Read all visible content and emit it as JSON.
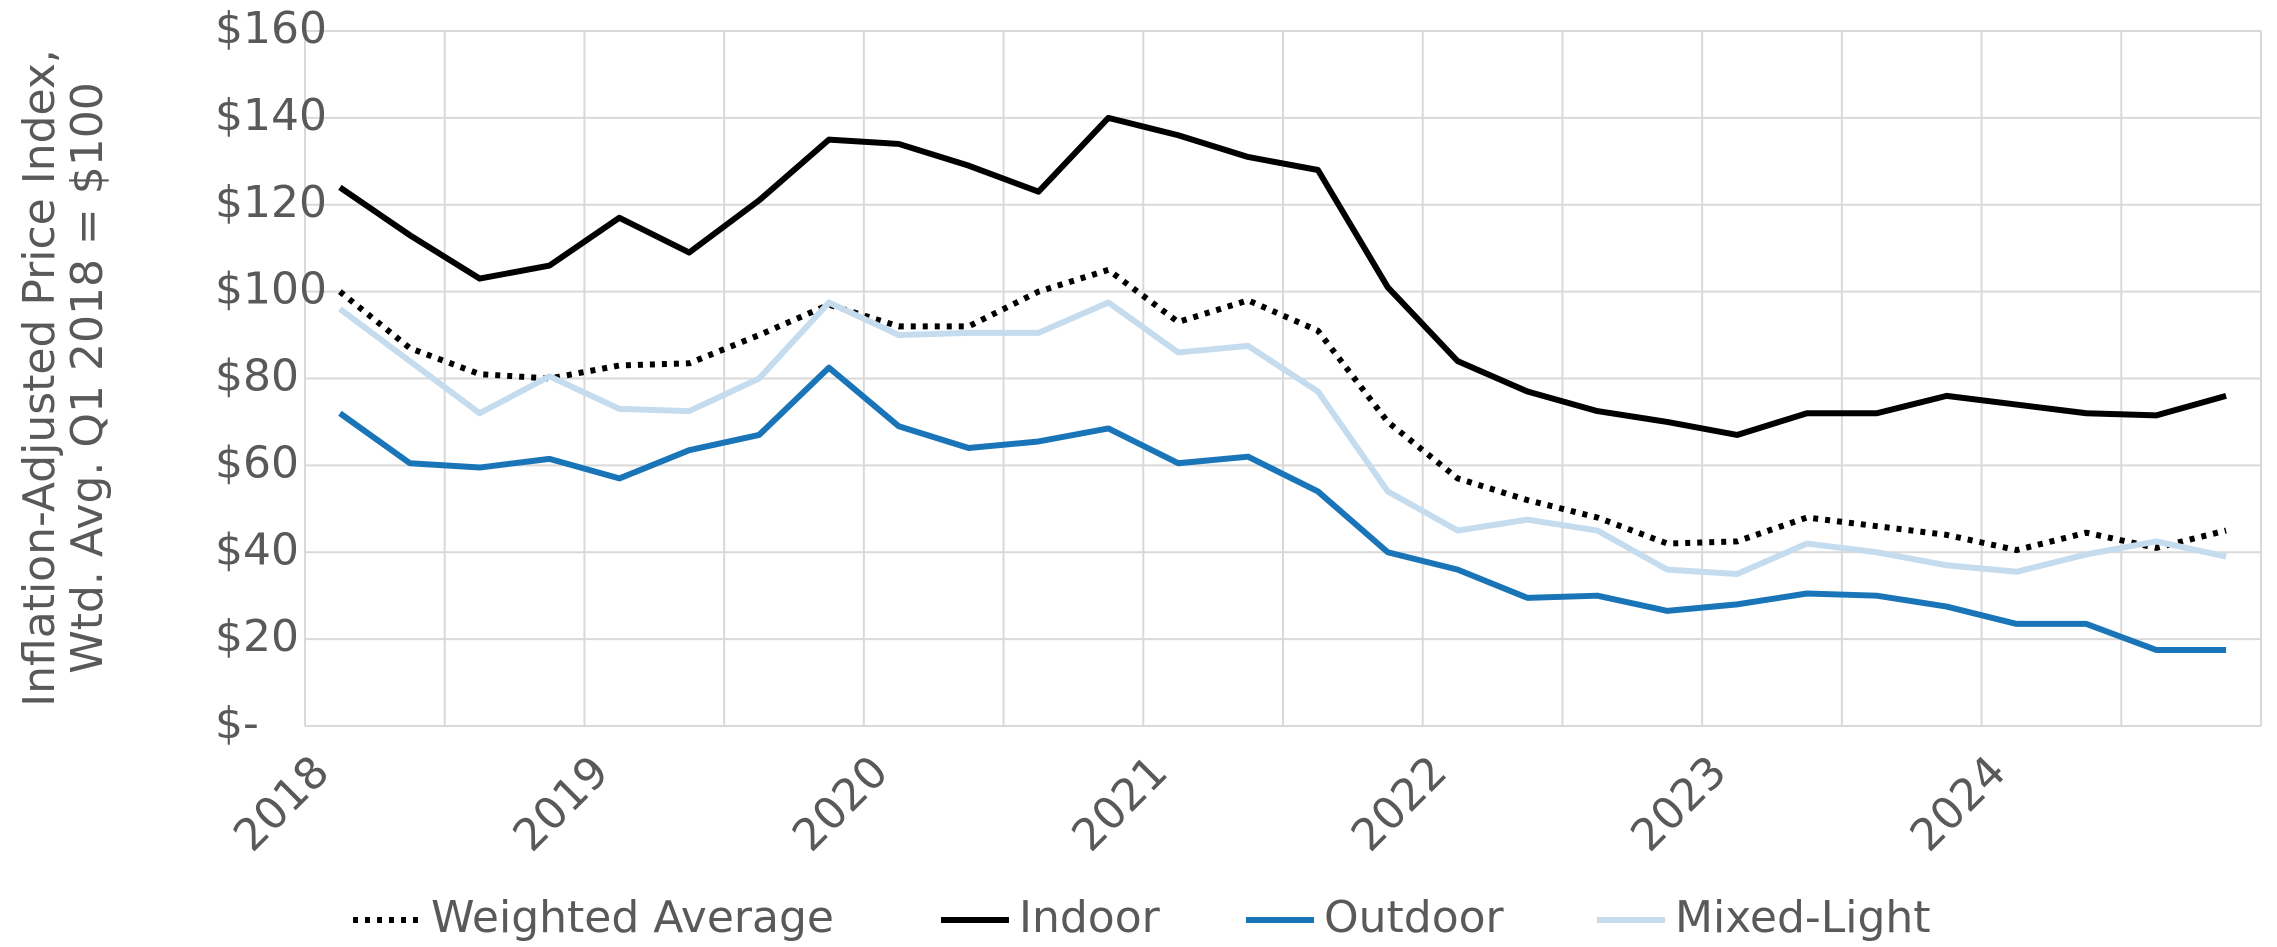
{
  "chart_data": {
    "type": "line",
    "ylabel": [
      "Inflation-Adjusted Price Index,",
      "Wtd. Avg. Q1 2018 = $100"
    ],
    "x": [
      2018.125,
      2018.375,
      2018.625,
      2018.875,
      2019.125,
      2019.375,
      2019.625,
      2019.875,
      2020.125,
      2020.375,
      2020.625,
      2020.875,
      2021.125,
      2021.375,
      2021.625,
      2021.875,
      2022.125,
      2022.375,
      2022.625,
      2022.875,
      2023.125,
      2023.375,
      2023.625,
      2023.875,
      2024.125,
      2024.375,
      2024.625,
      2024.875
    ],
    "series": [
      {
        "name": "Weighted Average",
        "color": "#000000",
        "dash": "dotted",
        "values": [
          100,
          87,
          81,
          80,
          83,
          83.5,
          90,
          97,
          92,
          92,
          100,
          105,
          93,
          98,
          91,
          70,
          57,
          52,
          48,
          42,
          42.5,
          48,
          46,
          44,
          40.5,
          44.5,
          41,
          45
        ]
      },
      {
        "name": "Indoor",
        "color": "#000000",
        "dash": "solid",
        "values": [
          124,
          113,
          103,
          106,
          117,
          109,
          121,
          135,
          134,
          129,
          123,
          140,
          136,
          131,
          128,
          101,
          84,
          77,
          72.5,
          70,
          67,
          72,
          72,
          76,
          74,
          72,
          71.5,
          76
        ]
      },
      {
        "name": "Outdoor",
        "color": "#1a75b8",
        "dash": "solid",
        "values": [
          72,
          60.5,
          59.5,
          61.5,
          57,
          63.5,
          67,
          82.5,
          69,
          64,
          65.5,
          68.5,
          60.5,
          62,
          54,
          40,
          36,
          29.5,
          30,
          26.5,
          28,
          30.5,
          30,
          27.5,
          23.5,
          23.5,
          17.5,
          17.5
        ]
      },
      {
        "name": "Mixed-Light",
        "color": "#c5dcee",
        "dash": "solid",
        "values": [
          96,
          84,
          72,
          80.5,
          73,
          72.5,
          80,
          97.5,
          90,
          90.5,
          90.5,
          97.5,
          86,
          87.5,
          77,
          54,
          45,
          47.5,
          45,
          36,
          35,
          42,
          40,
          37,
          35.5,
          39.5,
          42.5,
          39
        ]
      }
    ],
    "xlim": [
      2018,
      2025
    ],
    "xticks": [
      2018,
      2019,
      2020,
      2021,
      2022,
      2023,
      2024
    ],
    "x_gridlines": [
      2018,
      2018.5,
      2019,
      2019.5,
      2020,
      2020.5,
      2021,
      2021.5,
      2022,
      2022.5,
      2023,
      2023.5,
      2024,
      2024.5,
      2025
    ],
    "ylim": [
      0,
      160
    ],
    "yticks": [
      {
        "value": 0,
        "label": "$-"
      },
      {
        "value": 20,
        "label": "$20"
      },
      {
        "value": 40,
        "label": "$40"
      },
      {
        "value": 60,
        "label": "$60"
      },
      {
        "value": 80,
        "label": "$80"
      },
      {
        "value": 100,
        "label": "$100"
      },
      {
        "value": 120,
        "label": "$120"
      },
      {
        "value": 140,
        "label": "$140"
      },
      {
        "value": 160,
        "label": "$160"
      }
    ],
    "grid": true,
    "legend": "bottom"
  }
}
